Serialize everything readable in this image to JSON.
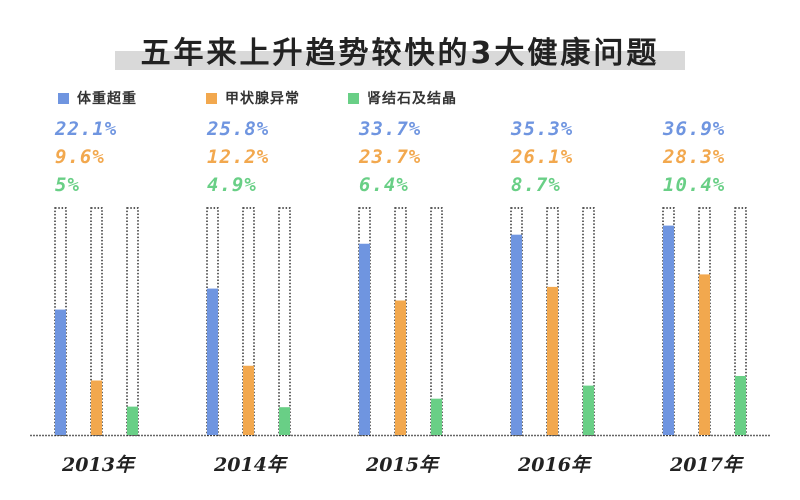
{
  "chart_data": {
    "type": "bar",
    "title": "五年来上升趋势较快的3大健康问题",
    "categories": [
      "2013年",
      "2014年",
      "2015年",
      "2016年",
      "2017年"
    ],
    "series": [
      {
        "name": "体重超重",
        "color": "#6f95e0",
        "values": [
          22.1,
          25.8,
          33.7,
          35.3,
          36.9
        ],
        "labels": [
          "22.1%",
          "25.8%",
          "33.7%",
          "35.3%",
          "36.9%"
        ]
      },
      {
        "name": "甲状腺异常",
        "color": "#f2a84e",
        "values": [
          9.6,
          12.2,
          23.7,
          26.1,
          28.3
        ],
        "labels": [
          "9.6%",
          "12.2%",
          "23.7%",
          "26.1%",
          "28.3%"
        ]
      },
      {
        "name": "肾结石及结晶",
        "color": "#69cf86",
        "values": [
          5,
          4.9,
          6.4,
          8.7,
          10.4
        ],
        "labels": [
          "5%",
          "4.9%",
          "6.4%",
          "8.7%",
          "10.4%"
        ]
      }
    ],
    "ylim": [
      0,
      40
    ],
    "legend": "top-left",
    "grid": false
  }
}
